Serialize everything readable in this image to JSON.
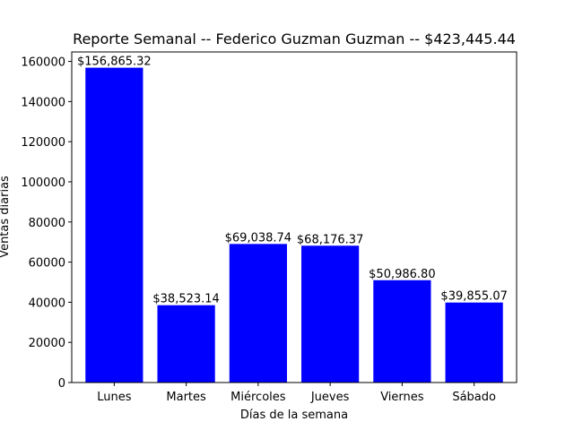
{
  "chart_data": {
    "type": "bar",
    "title": "Reporte Semanal -- Federico Guzman Guzman -- $423,445.44",
    "xlabel": "Días de la semana",
    "ylabel": "Ventas diarias",
    "categories": [
      "Lunes",
      "Martes",
      "Miércoles",
      "Jueves",
      "Viernes",
      "Sábado"
    ],
    "values": [
      156865.32,
      38523.14,
      69038.74,
      68176.37,
      50986.8,
      39855.07
    ],
    "data_labels": [
      "$156,865.32",
      "$38,523.14",
      "$69,038.74",
      "$68,176.37",
      "$50,986.80",
      "$39,855.07"
    ],
    "ylim": [
      0,
      164708.59
    ],
    "yticks": [
      0,
      20000,
      40000,
      60000,
      80000,
      100000,
      120000,
      140000,
      160000
    ],
    "ytick_labels": [
      "0",
      "20000",
      "40000",
      "60000",
      "80000",
      "100000",
      "120000",
      "140000",
      "160000"
    ],
    "bar_color": "#0000ff",
    "grid": false,
    "legend": false
  }
}
